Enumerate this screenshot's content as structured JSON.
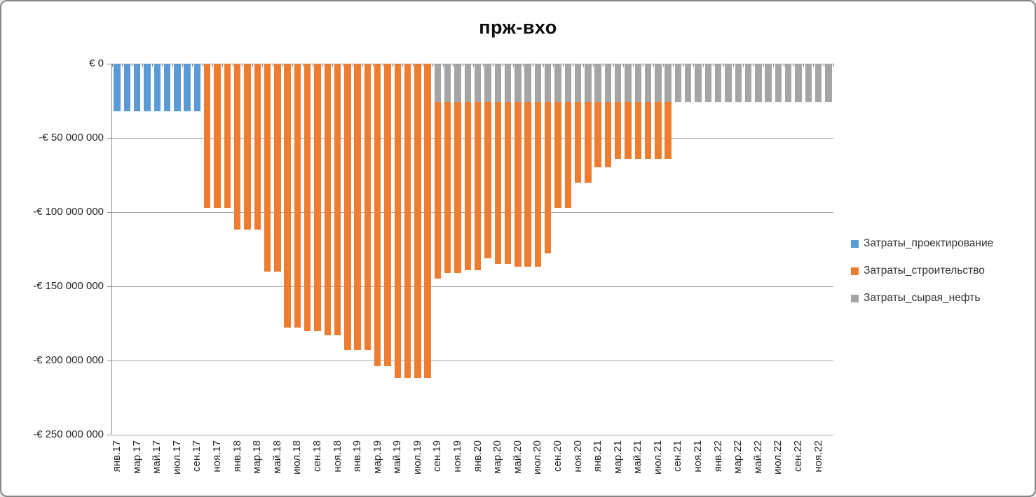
{
  "chart": {
    "title": "прж-вхо"
  },
  "chart_data": {
    "type": "bar",
    "stacked": true,
    "title": "прж-вхо",
    "currency": "EUR",
    "grid": true,
    "legend_position": "right",
    "ylim": [
      -250000000,
      0
    ],
    "y_tick_step": -50000000,
    "y_tick_labels": [
      "€ 0",
      "-€ 50 000 000",
      "-€ 100 000 000",
      "-€ 150 000 000",
      "-€ 200 000 000",
      "-€ 250 000 000"
    ],
    "x_tick_labels": [
      "янв.17",
      "мар.17",
      "май.17",
      "июл.17",
      "сен.17",
      "ноя.17",
      "янв.18",
      "мар.18",
      "май.18",
      "июл.18",
      "сен.18",
      "ноя.18",
      "янв.19",
      "мар.19",
      "май.19",
      "июл.19",
      "сен.19",
      "ноя.19",
      "янв.20",
      "мар.20",
      "май.20",
      "июл.20",
      "сен.20",
      "ноя.20",
      "янв.21",
      "мар.21",
      "май.21",
      "июл.21",
      "сен.21",
      "ноя.21",
      "янв.22",
      "мар.22",
      "май.22",
      "июл.22",
      "сен.22",
      "ноя.22"
    ],
    "categories": [
      "янв.17",
      "фев.17",
      "мар.17",
      "апр.17",
      "май.17",
      "июн.17",
      "июл.17",
      "авг.17",
      "сен.17",
      "окт.17",
      "ноя.17",
      "дек.17",
      "янв.18",
      "фев.18",
      "мар.18",
      "апр.18",
      "май.18",
      "июн.18",
      "июл.18",
      "авг.18",
      "сен.18",
      "окт.18",
      "ноя.18",
      "дек.18",
      "янв.19",
      "фев.19",
      "мар.19",
      "апр.19",
      "май.19",
      "июн.19",
      "июл.19",
      "авг.19",
      "сен.19",
      "окт.19",
      "ноя.19",
      "дек.19",
      "янв.20",
      "фев.20",
      "мар.20",
      "апр.20",
      "май.20",
      "июн.20",
      "июл.20",
      "авг.20",
      "сен.20",
      "окт.20",
      "ноя.20",
      "дек.20",
      "янв.21",
      "фев.21",
      "мар.21",
      "апр.21",
      "май.21",
      "июн.21",
      "июл.21",
      "авг.21",
      "сен.21",
      "окт.21",
      "ноя.21",
      "дек.21",
      "янв.22",
      "фев.22",
      "мар.22",
      "апр.22",
      "май.22",
      "июн.22",
      "июл.22",
      "авг.22",
      "сен.22",
      "окт.22",
      "ноя.22",
      "дек.22"
    ],
    "series": [
      {
        "name": "Затраты_проектирование",
        "color": "#5B9BD5",
        "values": [
          -32000000,
          -32000000,
          -32000000,
          -32000000,
          -32000000,
          -32000000,
          -32000000,
          -32000000,
          -32000000,
          0,
          0,
          0,
          0,
          0,
          0,
          0,
          0,
          0,
          0,
          0,
          0,
          0,
          0,
          0,
          0,
          0,
          0,
          0,
          0,
          0,
          0,
          0,
          0,
          0,
          0,
          0,
          0,
          0,
          0,
          0,
          0,
          0,
          0,
          0,
          0,
          0,
          0,
          0,
          0,
          0,
          0,
          0,
          0,
          0,
          0,
          0,
          0,
          0,
          0,
          0,
          0,
          0,
          0,
          0,
          0,
          0,
          0,
          0,
          0,
          0,
          0,
          0
        ]
      },
      {
        "name": "Затраты_строительство",
        "color": "#ED7D31",
        "values": [
          0,
          0,
          0,
          0,
          0,
          0,
          0,
          0,
          0,
          -97000000,
          -97000000,
          -97000000,
          -112000000,
          -112000000,
          -112000000,
          -140000000,
          -140000000,
          -178000000,
          -178000000,
          -180000000,
          -180000000,
          -183000000,
          -183000000,
          -193000000,
          -193000000,
          -193000000,
          -204000000,
          -204000000,
          -212000000,
          -212000000,
          -212000000,
          -212000000,
          -119000000,
          -115000000,
          -115000000,
          -113000000,
          -113000000,
          -105000000,
          -109000000,
          -109000000,
          -111000000,
          -111000000,
          -111000000,
          -102000000,
          -71000000,
          -71000000,
          -54000000,
          -54000000,
          -44000000,
          -44000000,
          -38000000,
          -38000000,
          -38000000,
          -38000000,
          -38000000,
          -38000000,
          0,
          0,
          0,
          0,
          0,
          0,
          0,
          0,
          0,
          0,
          0,
          0,
          0,
          0,
          0,
          0
        ]
      },
      {
        "name": "Затраты_сырая_нефть",
        "color": "#A5A5A5",
        "values": [
          0,
          0,
          0,
          0,
          0,
          0,
          0,
          0,
          0,
          0,
          0,
          0,
          0,
          0,
          0,
          0,
          0,
          0,
          0,
          0,
          0,
          0,
          0,
          0,
          0,
          0,
          0,
          0,
          0,
          0,
          0,
          0,
          -26000000,
          -26000000,
          -26000000,
          -26000000,
          -26000000,
          -26000000,
          -26000000,
          -26000000,
          -26000000,
          -26000000,
          -26000000,
          -26000000,
          -26000000,
          -26000000,
          -26000000,
          -26000000,
          -26000000,
          -26000000,
          -26000000,
          -26000000,
          -26000000,
          -26000000,
          -26000000,
          -26000000,
          -26000000,
          -26000000,
          -26000000,
          -26000000,
          -26000000,
          -26000000,
          -26000000,
          -26000000,
          -26000000,
          -26000000,
          -26000000,
          -26000000,
          -26000000,
          -26000000,
          -26000000,
          -26000000
        ]
      }
    ]
  }
}
